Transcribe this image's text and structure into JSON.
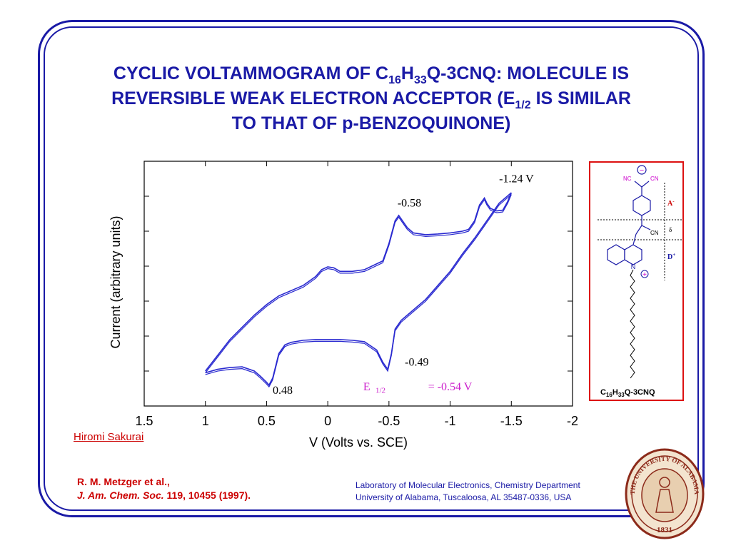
{
  "title": {
    "line1_a": "CYCLIC VOLTAMMOGRAM OF C",
    "line1_sub1": "16",
    "line1_b": "H",
    "line1_sub2": "33",
    "line1_c": "Q-3CNQ: MOLECULE IS",
    "line2_a": "REVERSIBLE WEAK ELECTRON ACCEPTOR (E",
    "line2_sub": "1/2",
    "line2_b": " IS SIMILAR",
    "line3": "TO THAT OF p-BENZOQUINONE)"
  },
  "chart_data": {
    "type": "line",
    "xlabel": "V (Volts vs. SCE)",
    "ylabel": "Current (arbitrary units)",
    "xlim": [
      1.5,
      -2
    ],
    "x_ticks": [
      1.5,
      1,
      0.5,
      0,
      -0.5,
      -1,
      -1.5,
      -2
    ],
    "x_tick_labels": [
      "1.5",
      "1",
      "0.5",
      "0",
      "-0.5",
      "-1",
      "-1.5",
      "-2"
    ],
    "ylim": [
      0,
      7
    ],
    "y_ticks": [
      1,
      2,
      3,
      4,
      5,
      6
    ],
    "grid": false,
    "series_color": "#2a2ad0",
    "series": [
      {
        "x": [
          1.0,
          0.9,
          0.8,
          0.7,
          0.6,
          0.55,
          0.5,
          0.48,
          0.45,
          0.4,
          0.35,
          0.3,
          0.2,
          0.1,
          0.0,
          -0.1,
          -0.2,
          -0.3,
          -0.4,
          -0.45,
          -0.49,
          -0.52,
          -0.55,
          -0.6,
          -0.7,
          -0.8,
          -0.9,
          -1.0,
          -1.1,
          -1.2,
          -1.3,
          -1.4,
          -1.5
        ],
        "y": [
          0.95,
          1.05,
          1.1,
          1.12,
          1.0,
          0.85,
          0.68,
          0.6,
          0.8,
          1.5,
          1.75,
          1.82,
          1.88,
          1.9,
          1.9,
          1.9,
          1.88,
          1.84,
          1.6,
          1.25,
          1.05,
          1.5,
          2.2,
          2.45,
          2.75,
          3.05,
          3.45,
          3.85,
          4.35,
          4.8,
          5.3,
          5.8,
          6.1
        ]
      },
      {
        "x": [
          -1.5,
          -1.47,
          -1.43,
          -1.38,
          -1.33,
          -1.3,
          -1.28,
          -1.24,
          -1.2,
          -1.15,
          -1.1,
          -1.0,
          -0.9,
          -0.8,
          -0.7,
          -0.65,
          -0.6,
          -0.58,
          -0.55,
          -0.5,
          -0.45,
          -0.3,
          -0.2,
          -0.1,
          -0.05,
          0.0,
          0.05,
          0.1,
          0.2,
          0.3,
          0.4,
          0.5,
          0.6,
          0.7,
          0.8,
          0.9,
          1.0
        ],
        "y": [
          6.1,
          5.85,
          5.6,
          5.58,
          5.65,
          5.8,
          5.95,
          5.75,
          5.3,
          5.05,
          5.0,
          4.95,
          4.92,
          4.9,
          4.95,
          5.1,
          5.35,
          5.45,
          5.3,
          4.65,
          4.15,
          3.9,
          3.85,
          3.85,
          3.95,
          3.98,
          3.9,
          3.7,
          3.45,
          3.3,
          3.15,
          2.9,
          2.6,
          2.25,
          1.9,
          1.45,
          1.0
        ]
      }
    ],
    "annotations": [
      {
        "text": "-1.24 V",
        "x": -1.4,
        "y": 6.4,
        "color": "#000000"
      },
      {
        "text": "-0.58",
        "x": -0.57,
        "y": 5.7,
        "color": "#000000"
      },
      {
        "text": "-0.49",
        "x": -0.63,
        "y": 1.15,
        "color": "#000000"
      },
      {
        "text": "0.48",
        "x": 0.45,
        "y": 0.35,
        "color": "#000000"
      },
      {
        "text": "E",
        "x": -0.29,
        "y": 0.45,
        "color": "#cc22cc"
      },
      {
        "text": "1/2",
        "x": -0.39,
        "y": 0.38,
        "color": "#cc22cc"
      },
      {
        "text": "= -0.54 V",
        "x": -0.82,
        "y": 0.45,
        "color": "#cc22cc"
      }
    ]
  },
  "author_link": "Hiromi Sakurai",
  "citation": {
    "line1": "R. M. Metzger et al.,",
    "journal": "J. Am. Chem. Soc.",
    "rest": " 119, 10455 (1997)."
  },
  "lab": {
    "line1": "Laboratory of Molecular Electronics, Chemistry Department",
    "line2": "University of Alabama, Tuscaloosa, AL 35487-0336, USA"
  },
  "molecule": {
    "nc_label": "NC",
    "cn_label": "CN",
    "cn2_label": "CN",
    "n_label": "N",
    "minus_label": "−",
    "plus_label": "+",
    "delta_label": "δ",
    "a_label": "A",
    "a_sup": "-",
    "d_label": "D",
    "d_sup": "+",
    "formula_c": "C",
    "formula_sub1": "16",
    "formula_h": "H",
    "formula_sub2": "33",
    "formula_rest": "Q-3CNQ"
  },
  "seal": {
    "top_text": "THE UNIVERSITY OF ALABAMA",
    "year": "1831"
  }
}
